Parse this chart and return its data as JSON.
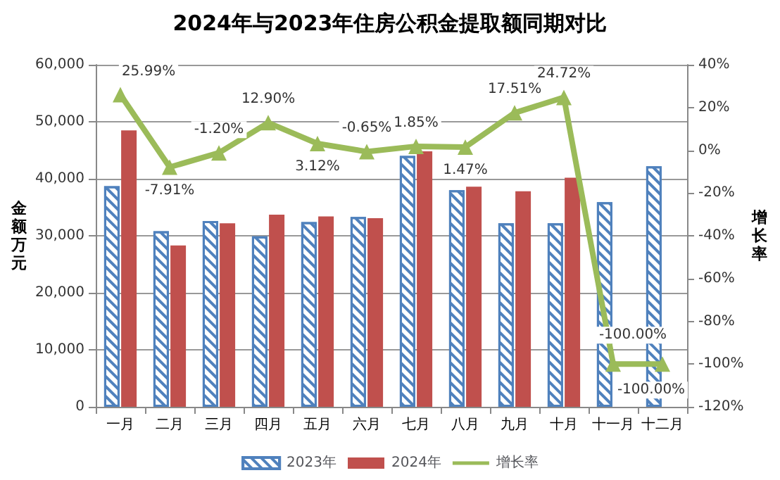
{
  "chart_data": {
    "type": "bar",
    "title": "2024年与2023年住房公积金提取额同期对比",
    "ylabel": "金额万元",
    "y2label": "增长率",
    "categories": [
      "一月",
      "二月",
      "三月",
      "四月",
      "五月",
      "六月",
      "七月",
      "八月",
      "九月",
      "十月",
      "十一月",
      "十二月"
    ],
    "series": [
      {
        "name": "2023年",
        "color": "#4f81bd",
        "values": [
          38700,
          30800,
          32600,
          29900,
          32400,
          33300,
          44000,
          38000,
          32200,
          32200,
          35900,
          42200
        ]
      },
      {
        "name": "2024年",
        "color": "#c0504d",
        "values": [
          48500,
          28300,
          32200,
          33700,
          33400,
          33100,
          44800,
          38600,
          37800,
          40200,
          null,
          null
        ]
      },
      {
        "name": "增长率",
        "type": "line",
        "axis": "y2",
        "color": "#9bbb59",
        "marker": "triangle",
        "values": [
          25.99,
          -7.91,
          -1.2,
          12.9,
          3.12,
          -0.65,
          1.85,
          1.47,
          17.51,
          24.72,
          -100,
          -100
        ],
        "value_labels": [
          "25.99%",
          "-7.91%",
          "-1.20%",
          "12.90%",
          "3.12%",
          "-0.65%",
          "1.85%",
          "1.47%",
          "17.51%",
          "24.72%",
          "-100.00%",
          "-100.00%"
        ]
      }
    ],
    "ylim": [
      0,
      60000
    ],
    "yticks": [
      {
        "value": 0,
        "label": "0"
      },
      {
        "value": 10000,
        "label": "10,000"
      },
      {
        "value": 20000,
        "label": "20,000"
      },
      {
        "value": 30000,
        "label": "30,000"
      },
      {
        "value": 40000,
        "label": "40,000"
      },
      {
        "value": 50000,
        "label": "50,000"
      },
      {
        "value": 60000,
        "label": "60,000"
      }
    ],
    "y2lim": [
      -120,
      40
    ],
    "y2ticks": [
      {
        "value": -120,
        "label": "-120%"
      },
      {
        "value": -100,
        "label": "-100%"
      },
      {
        "value": -80,
        "label": "-80%"
      },
      {
        "value": -60,
        "label": "-60%"
      },
      {
        "value": -40,
        "label": "-40%"
      },
      {
        "value": -20,
        "label": "-20%"
      },
      {
        "value": 0,
        "label": "0%"
      },
      {
        "value": 20,
        "label": "20%"
      },
      {
        "value": 40,
        "label": "40%"
      }
    ],
    "grid": "y",
    "legend": "bottom"
  }
}
